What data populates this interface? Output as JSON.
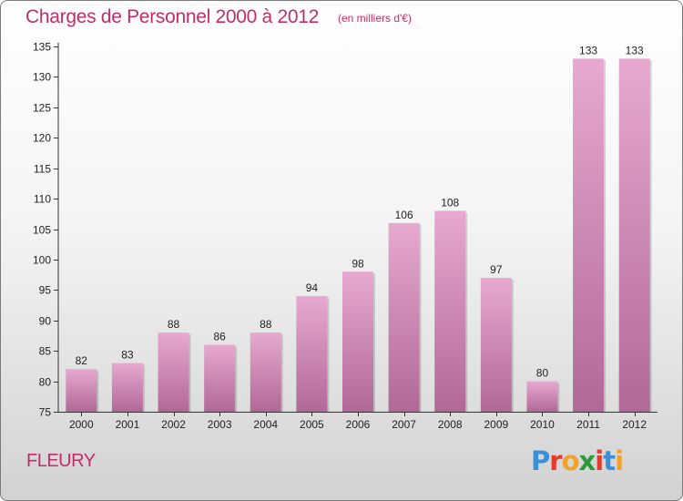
{
  "header": {
    "title": "Charges de Personnel 2000 à 2012",
    "subtitle": "(en milliers d'€)"
  },
  "footer": {
    "commune": "FLEURY",
    "brand": "Proxiti",
    "brand_colors": [
      "#3a8fd9",
      "#e23b2e",
      "#f1a22b",
      "#2a9a3a",
      "#e23b2e",
      "#3a8fd9",
      "#f1a22b"
    ]
  },
  "colors": {
    "accent": "#c22c6a",
    "bar_top": "#e7a9cf",
    "bar_bottom": "#b06996",
    "axis": "#333333"
  },
  "chart_data": {
    "type": "bar",
    "title": "Charges de Personnel 2000 à 2012",
    "subtitle": "(en milliers d'€)",
    "categories": [
      "2000",
      "2001",
      "2002",
      "2003",
      "2004",
      "2005",
      "2006",
      "2007",
      "2008",
      "2009",
      "2010",
      "2011",
      "2012"
    ],
    "values": [
      82,
      83,
      88,
      86,
      88,
      94,
      98,
      106,
      108,
      97,
      80,
      133,
      133
    ],
    "ylim": [
      75,
      135
    ],
    "yticks": [
      75,
      80,
      85,
      90,
      95,
      100,
      105,
      110,
      115,
      120,
      125,
      130,
      135
    ],
    "grid": false,
    "legend": "none"
  }
}
